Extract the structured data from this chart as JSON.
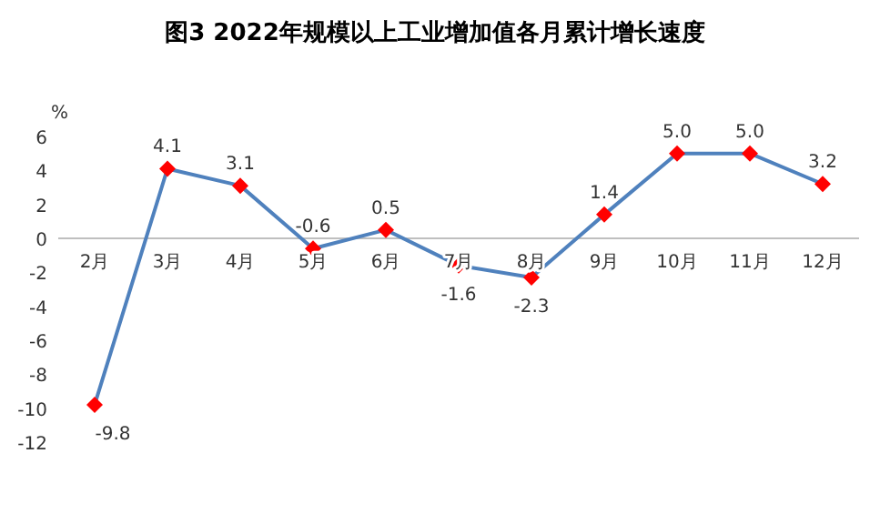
{
  "chart_data": {
    "type": "line",
    "title": "图3 2022年规模以上工业增加值各月累计增长速度",
    "ylabel": "%",
    "categories": [
      "2月",
      "3月",
      "4月",
      "5月",
      "6月",
      "7月",
      "8月",
      "9月",
      "10月",
      "11月",
      "12月"
    ],
    "series": [
      {
        "color": "#4f81bd",
        "values": [
          -9.8,
          4.1,
          3.1,
          -0.6,
          0.5,
          -1.6,
          -2.3,
          1.4,
          5.0,
          5.0,
          3.2
        ],
        "value_labels": [
          "-9.8",
          "4.1",
          "3.1",
          "-0.6",
          "0.5",
          "-1.6",
          "-2.3",
          "1.4",
          "5.0",
          "5.0",
          "3.2"
        ]
      }
    ],
    "marker": "diamond",
    "line_style": "solid",
    "ylim": [
      -12,
      6
    ],
    "yticks": [
      -12,
      -10,
      -8,
      -6,
      -4,
      -2,
      0,
      2,
      4,
      6
    ],
    "grid": false
  }
}
